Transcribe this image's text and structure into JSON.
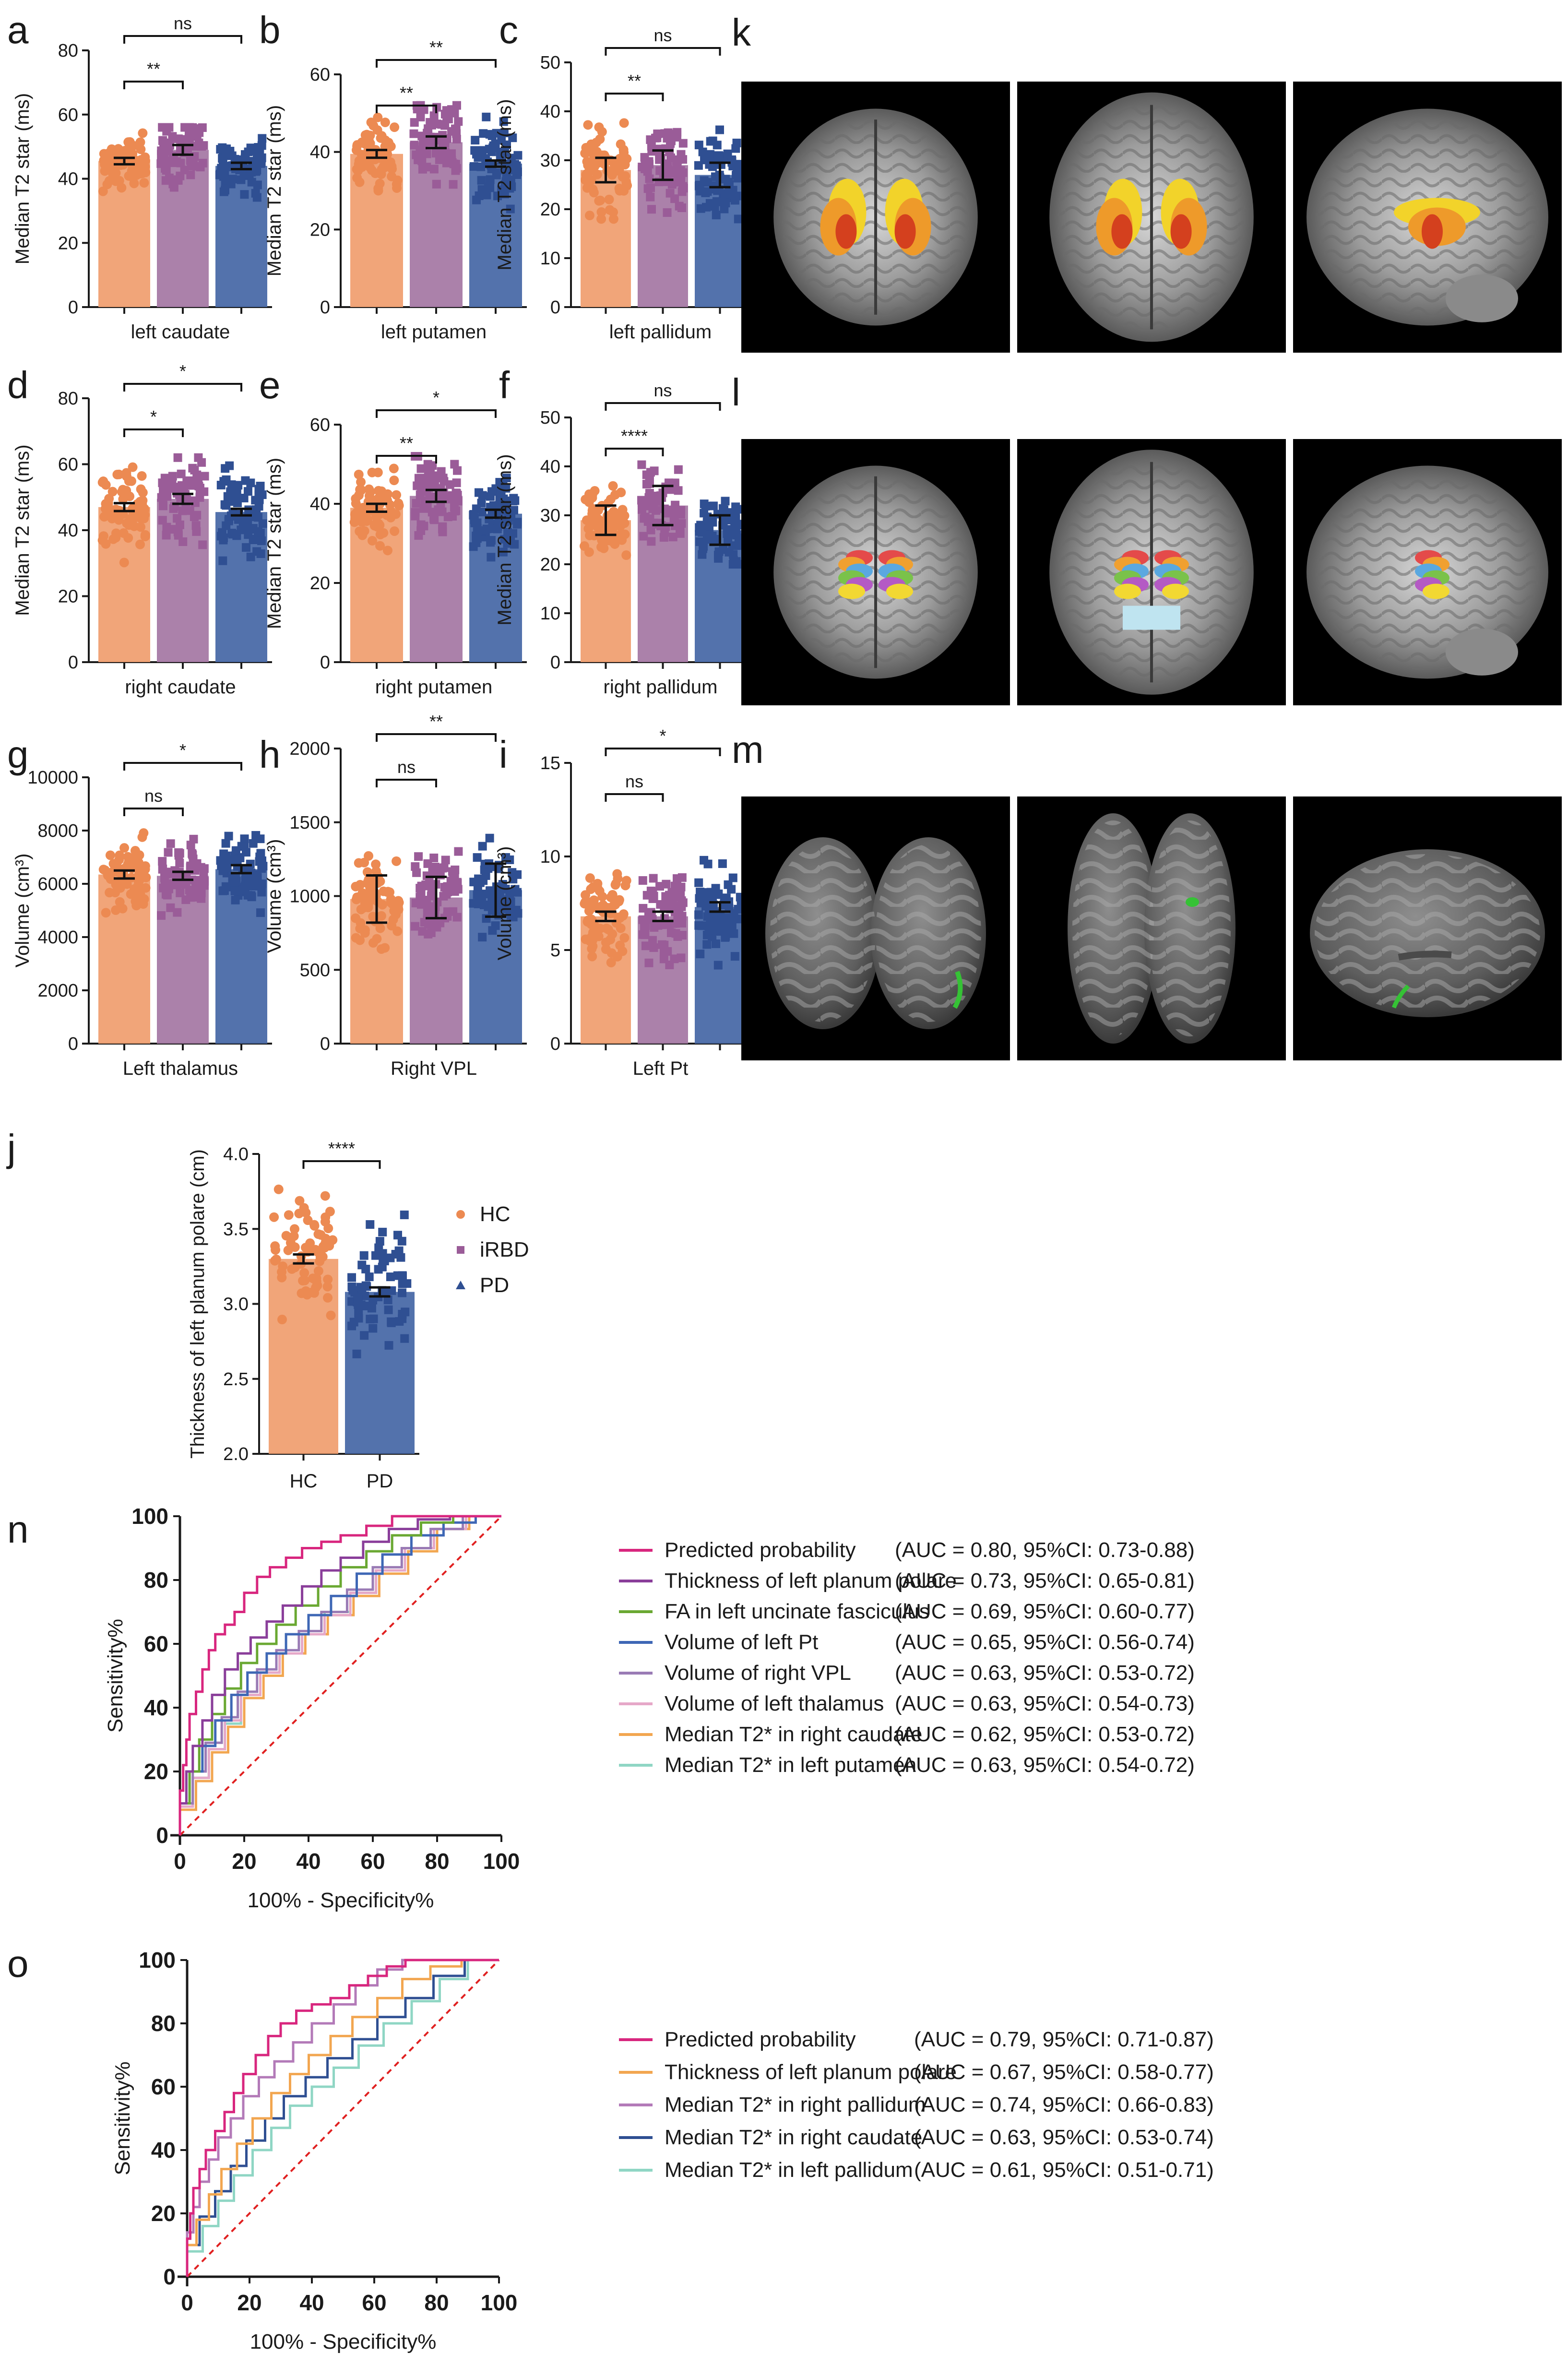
{
  "colors": {
    "HC": "#f0a072",
    "iRBD": "#a77aa5",
    "PD": "#4a6aa8",
    "HCdot": "#ec8a52",
    "iRBDdot": "#9a5c98",
    "PDdot": "#2f4f92"
  },
  "chart_data": [
    {
      "id": "a",
      "type": "bar",
      "letter": "a",
      "categories": [
        "HC",
        "iRBD",
        "PD"
      ],
      "values": [
        45.5,
        49,
        44
      ],
      "errors": [
        1.0,
        1.5,
        1.0
      ],
      "ylabel": "Median T2 star (ms)",
      "xlabel": "left caudate",
      "ylim": [
        0,
        80
      ],
      "yticks": [
        0,
        20,
        40,
        60,
        80
      ],
      "sig": [
        {
          "from": 0,
          "to": 1,
          "label": "**"
        },
        {
          "from": 0,
          "to": 2,
          "label": "ns"
        }
      ],
      "spread": [
        28,
        56
      ]
    },
    {
      "id": "b",
      "type": "bar",
      "letter": "b",
      "categories": [
        "HC",
        "iRBD",
        "PD"
      ],
      "values": [
        39.5,
        42.5,
        37
      ],
      "errors": [
        1.0,
        1.5,
        0.8
      ],
      "ylabel": "Median T2 star (ms)",
      "xlabel": "left putamen",
      "ylim": [
        0,
        60
      ],
      "yticks": [
        0,
        20,
        40,
        60
      ],
      "sig": [
        {
          "from": 0,
          "to": 1,
          "label": "**"
        },
        {
          "from": 0,
          "to": 2,
          "label": "**"
        }
      ],
      "spread": [
        20,
        52
      ]
    },
    {
      "id": "c",
      "type": "bar",
      "letter": "c",
      "categories": [
        "HC",
        "iRBD",
        "PD"
      ],
      "values": [
        28,
        29,
        27
      ],
      "errors": [
        2.5,
        3.0,
        2.5
      ],
      "ylabel": "Median T2 star (ms)",
      "xlabel": "left pallidum",
      "ylim": [
        0,
        50
      ],
      "yticks": [
        0,
        10,
        20,
        30,
        40,
        50
      ],
      "sig": [
        {
          "from": 0,
          "to": 1,
          "label": "**"
        },
        {
          "from": 0,
          "to": 2,
          "label": "ns"
        }
      ],
      "spread": [
        18,
        46
      ]
    },
    {
      "id": "d",
      "type": "bar",
      "letter": "d",
      "categories": [
        "HC",
        "iRBD",
        "PD"
      ],
      "values": [
        47,
        49.5,
        45.5
      ],
      "errors": [
        1.2,
        1.5,
        1.0
      ],
      "ylabel": "Median T2 star (ms)",
      "xlabel": "right caudate",
      "ylim": [
        0,
        80
      ],
      "yticks": [
        0,
        20,
        40,
        60,
        80
      ],
      "sig": [
        {
          "from": 0,
          "to": 1,
          "label": "*"
        },
        {
          "from": 0,
          "to": 2,
          "label": "*"
        }
      ],
      "spread": [
        24,
        62
      ]
    },
    {
      "id": "e",
      "type": "bar",
      "letter": "e",
      "categories": [
        "HC",
        "iRBD",
        "PD"
      ],
      "values": [
        39,
        42,
        37.5
      ],
      "errors": [
        1.0,
        1.5,
        1.0
      ],
      "ylabel": "Median T2 star (ms)",
      "xlabel": "right putamen",
      "ylim": [
        0,
        60
      ],
      "yticks": [
        0,
        20,
        40,
        60
      ],
      "sig": [
        {
          "from": 0,
          "to": 1,
          "label": "**"
        },
        {
          "from": 0,
          "to": 2,
          "label": "*"
        }
      ],
      "spread": [
        22,
        52
      ]
    },
    {
      "id": "f",
      "type": "bar",
      "letter": "f",
      "categories": [
        "HC",
        "iRBD",
        "PD"
      ],
      "values": [
        29,
        32,
        27
      ],
      "errors": [
        3.0,
        4.0,
        3.0
      ],
      "ylabel": "Median T2 star (ms)",
      "xlabel": "right pallidum",
      "ylim": [
        0,
        50
      ],
      "yticks": [
        0,
        10,
        20,
        30,
        40,
        50
      ],
      "sig": [
        {
          "from": 0,
          "to": 1,
          "label": "****"
        },
        {
          "from": 0,
          "to": 2,
          "label": "ns"
        }
      ],
      "spread": [
        20,
        42
      ]
    },
    {
      "id": "g",
      "type": "bar",
      "letter": "g",
      "categories": [
        "HC",
        "iRBD",
        "PD"
      ],
      "values": [
        6350,
        6300,
        6550
      ],
      "errors": [
        150,
        150,
        150
      ],
      "ylabel": "Volume (cm³)",
      "xlabel": "Left thalamus",
      "ylim": [
        0,
        10000
      ],
      "yticks": [
        0,
        2000,
        4000,
        6000,
        8000,
        10000
      ],
      "sig": [
        {
          "from": 0,
          "to": 1,
          "label": "ns"
        },
        {
          "from": 0,
          "to": 2,
          "label": "*"
        }
      ],
      "spread": [
        4200,
        8500
      ]
    },
    {
      "id": "h",
      "type": "bar",
      "letter": "h",
      "categories": [
        "HC",
        "iRBD",
        "PD"
      ],
      "values": [
        980,
        990,
        1040
      ],
      "errors": [
        160,
        140,
        180
      ],
      "ylabel": "Volume (cm³)",
      "xlabel": "Right VPL",
      "ylim": [
        0,
        2000
      ],
      "yticks": [
        0,
        500,
        1000,
        1500,
        2000
      ],
      "sig": [
        {
          "from": 0,
          "to": 1,
          "label": "ns"
        },
        {
          "from": 0,
          "to": 2,
          "label": "**"
        }
      ],
      "spread": [
        500,
        1400
      ]
    },
    {
      "id": "i",
      "type": "bar",
      "letter": "i",
      "categories": [
        "HC",
        "iRBD",
        "PD"
      ],
      "values": [
        6.8,
        6.8,
        7.3
      ],
      "errors": [
        0.25,
        0.25,
        0.25
      ],
      "ylabel": "Volume (cm³)",
      "xlabel": "Left Pt",
      "ylim": [
        0,
        15
      ],
      "yticks": [
        0,
        5,
        10,
        15
      ],
      "sig": [
        {
          "from": 0,
          "to": 1,
          "label": "ns"
        },
        {
          "from": 0,
          "to": 2,
          "label": "*"
        }
      ],
      "spread": [
        4,
        11.7
      ]
    },
    {
      "id": "j",
      "type": "bar",
      "letter": "j",
      "categories": [
        "HC",
        "PD"
      ],
      "values": [
        3.3,
        3.08
      ],
      "errors": [
        0.03,
        0.03
      ],
      "ylabel": "Thickness of left planum polare (cm)",
      "xlabel": "",
      "ylim": [
        2.0,
        4.0
      ],
      "yticks": [
        2.0,
        2.5,
        3.0,
        3.5,
        4.0
      ],
      "sig": [
        {
          "from": 0,
          "to": 1,
          "label": "****"
        }
      ],
      "spread": [
        2.65,
        3.85
      ],
      "legend": [
        "HC",
        "iRBD",
        "PD"
      ]
    },
    {
      "id": "n",
      "type": "line",
      "letter": "n",
      "xlabel": "100% - Specificity%",
      "ylabel": "Sensitivity%",
      "xlim": [
        0,
        100
      ],
      "ylim": [
        0,
        100
      ],
      "ticks": [
        0,
        20,
        40,
        60,
        80,
        100
      ],
      "series": [
        {
          "name": "Predicted probability",
          "stats": "(AUC = 0.80, 95%CI: 0.73-0.88)",
          "color": "#d8267e",
          "x": [
            0,
            1,
            2,
            3,
            5,
            7,
            9,
            11,
            14,
            17,
            20,
            24,
            28,
            33,
            38,
            44,
            50,
            58,
            66,
            75,
            85,
            100
          ],
          "y": [
            0,
            14,
            22,
            30,
            38,
            45,
            52,
            58,
            63,
            66,
            70,
            76,
            81,
            84,
            87,
            90,
            92,
            94,
            97,
            100,
            100,
            100
          ]
        },
        {
          "name": "Thickness of left planum polare",
          "stats": "(AUC = 0.73, 95%CI: 0.65-0.81)",
          "color": "#8a3e9a",
          "x": [
            0,
            2,
            4,
            7,
            10,
            14,
            18,
            22,
            27,
            32,
            38,
            44,
            50,
            57,
            65,
            74,
            84,
            100
          ],
          "y": [
            0,
            10,
            20,
            28,
            36,
            44,
            52,
            57,
            62,
            67,
            72,
            78,
            83,
            87,
            92,
            96,
            99,
            100
          ]
        },
        {
          "name": "FA in left uncinate fasciculus",
          "stats": "(AUC = 0.69, 95%CI: 0.60-0.77)",
          "color": "#6aa832",
          "x": [
            0,
            3,
            6,
            10,
            14,
            19,
            24,
            30,
            36,
            43,
            50,
            58,
            66,
            75,
            85,
            100
          ],
          "y": [
            0,
            10,
            20,
            30,
            38,
            46,
            54,
            60,
            66,
            72,
            78,
            84,
            89,
            94,
            98,
            100
          ]
        },
        {
          "name": "Volume of left Pt",
          "stats": "(AUC = 0.65, 95%CI: 0.56-0.74)",
          "color": "#3e67b5",
          "x": [
            0,
            3,
            7,
            11,
            16,
            21,
            27,
            33,
            40,
            47,
            55,
            63,
            72,
            82,
            92,
            100
          ],
          "y": [
            0,
            10,
            20,
            28,
            36,
            44,
            51,
            57,
            63,
            69,
            75,
            82,
            88,
            94,
            98,
            100
          ]
        },
        {
          "name": "Volume of right VPL",
          "stats": "(AUC = 0.63, 95%CI: 0.53-0.72)",
          "color": "#9a7bb5",
          "x": [
            0,
            4,
            8,
            13,
            18,
            24,
            30,
            37,
            44,
            52,
            60,
            69,
            78,
            88,
            100
          ],
          "y": [
            0,
            10,
            20,
            29,
            37,
            45,
            52,
            58,
            64,
            70,
            77,
            84,
            90,
            96,
            100
          ]
        },
        {
          "name": "Volume of left thalamus",
          "stats": "(AUC =  0.63, 95%CI: 0.54-0.73)",
          "color": "#e6a8c8",
          "x": [
            0,
            4,
            9,
            14,
            19,
            25,
            31,
            38,
            45,
            53,
            61,
            70,
            79,
            89,
            100
          ],
          "y": [
            0,
            9,
            18,
            27,
            36,
            44,
            51,
            57,
            63,
            69,
            76,
            83,
            90,
            96,
            100
          ]
        },
        {
          "name": "Median T2* in right caudate",
          "stats": "(AUC = 0.62, 95%CI: 0.53-0.72)",
          "color": "#f2a650",
          "x": [
            0,
            5,
            10,
            15,
            20,
            26,
            32,
            39,
            46,
            54,
            62,
            71,
            80,
            90,
            100
          ],
          "y": [
            0,
            8,
            17,
            26,
            34,
            43,
            50,
            57,
            63,
            69,
            75,
            82,
            89,
            96,
            100
          ]
        },
        {
          "name": "Median T2* in left putamen",
          "stats": "(AUC = 0.63, 95%CI: 0.54-0.72)",
          "color": "#8fd6c4",
          "x": [
            0,
            4,
            9,
            14,
            19,
            25,
            31,
            38,
            45,
            53,
            61,
            70,
            79,
            89,
            100
          ],
          "y": [
            0,
            9,
            18,
            27,
            35,
            44,
            51,
            57,
            63,
            70,
            76,
            83,
            90,
            96,
            100
          ]
        }
      ]
    },
    {
      "id": "o",
      "type": "line",
      "letter": "o",
      "xlabel": "100% - Specificity%",
      "ylabel": "Sensitivity%",
      "xlim": [
        0,
        100
      ],
      "ylim": [
        0,
        100
      ],
      "ticks": [
        0,
        20,
        40,
        60,
        80,
        100
      ],
      "series": [
        {
          "name": "Predicted probability",
          "stats": "(AUC = 0.79, 95%CI: 0.71-0.87)",
          "color": "#d8267e",
          "x": [
            0,
            1,
            2,
            4,
            6,
            9,
            12,
            15,
            18,
            22,
            26,
            30,
            35,
            40,
            46,
            52,
            58,
            64,
            70,
            78,
            86,
            100
          ],
          "y": [
            0,
            12,
            20,
            28,
            34,
            40,
            46,
            52,
            58,
            64,
            70,
            76,
            80,
            84,
            86,
            88,
            92,
            95,
            98,
            100,
            100,
            100
          ]
        },
        {
          "name": "Thickness of left planum polare",
          "stats": "(AUC = 0.67, 95%CI: 0.58-0.77)",
          "color": "#f2a650",
          "x": [
            0,
            3,
            7,
            11,
            16,
            21,
            27,
            33,
            39,
            46,
            53,
            61,
            69,
            78,
            88,
            100
          ],
          "y": [
            0,
            10,
            18,
            26,
            34,
            42,
            50,
            58,
            64,
            70,
            76,
            82,
            88,
            94,
            98,
            100
          ]
        },
        {
          "name": "Median T2* in right pallidum",
          "stats": "(AUC = 0.74, 95%CI: 0.66-0.83)",
          "color": "#b37ab8",
          "x": [
            0,
            2,
            4,
            7,
            10,
            14,
            18,
            23,
            28,
            34,
            40,
            47,
            54,
            61,
            69,
            78,
            88,
            100
          ],
          "y": [
            0,
            14,
            22,
            30,
            37,
            44,
            50,
            57,
            63,
            68,
            74,
            80,
            86,
            92,
            97,
            100,
            100,
            100
          ]
        },
        {
          "name": "Median T2* in right caudate",
          "stats": "(AUC = 0.63, 95%CI: 0.53-0.74)",
          "color": "#2f4f92",
          "x": [
            0,
            4,
            9,
            14,
            19,
            25,
            31,
            38,
            45,
            53,
            61,
            70,
            79,
            89,
            100
          ],
          "y": [
            0,
            10,
            19,
            27,
            35,
            43,
            50,
            57,
            63,
            69,
            75,
            82,
            88,
            95,
            100
          ]
        },
        {
          "name": "Median T2* in left pallidum",
          "stats": "(AUC = 0.61, 95%CI: 0.51-0.71)",
          "color": "#8fd6c4",
          "x": [
            0,
            5,
            10,
            15,
            21,
            27,
            33,
            40,
            47,
            55,
            63,
            72,
            81,
            90,
            100
          ],
          "y": [
            0,
            8,
            16,
            24,
            32,
            40,
            47,
            54,
            60,
            66,
            73,
            80,
            87,
            94,
            100
          ]
        }
      ]
    }
  ],
  "brain_panels": [
    {
      "letter": "k",
      "views": [
        "coronal-subcortical",
        "axial-subcortical",
        "sagittal-subcortical"
      ]
    },
    {
      "letter": "l",
      "views": [
        "coronal-thalamus",
        "axial-thalamus",
        "sagittal-thalamus"
      ]
    },
    {
      "letter": "m",
      "views": [
        "inferior-surface",
        "ventral-surface",
        "lateral-surface"
      ]
    }
  ]
}
